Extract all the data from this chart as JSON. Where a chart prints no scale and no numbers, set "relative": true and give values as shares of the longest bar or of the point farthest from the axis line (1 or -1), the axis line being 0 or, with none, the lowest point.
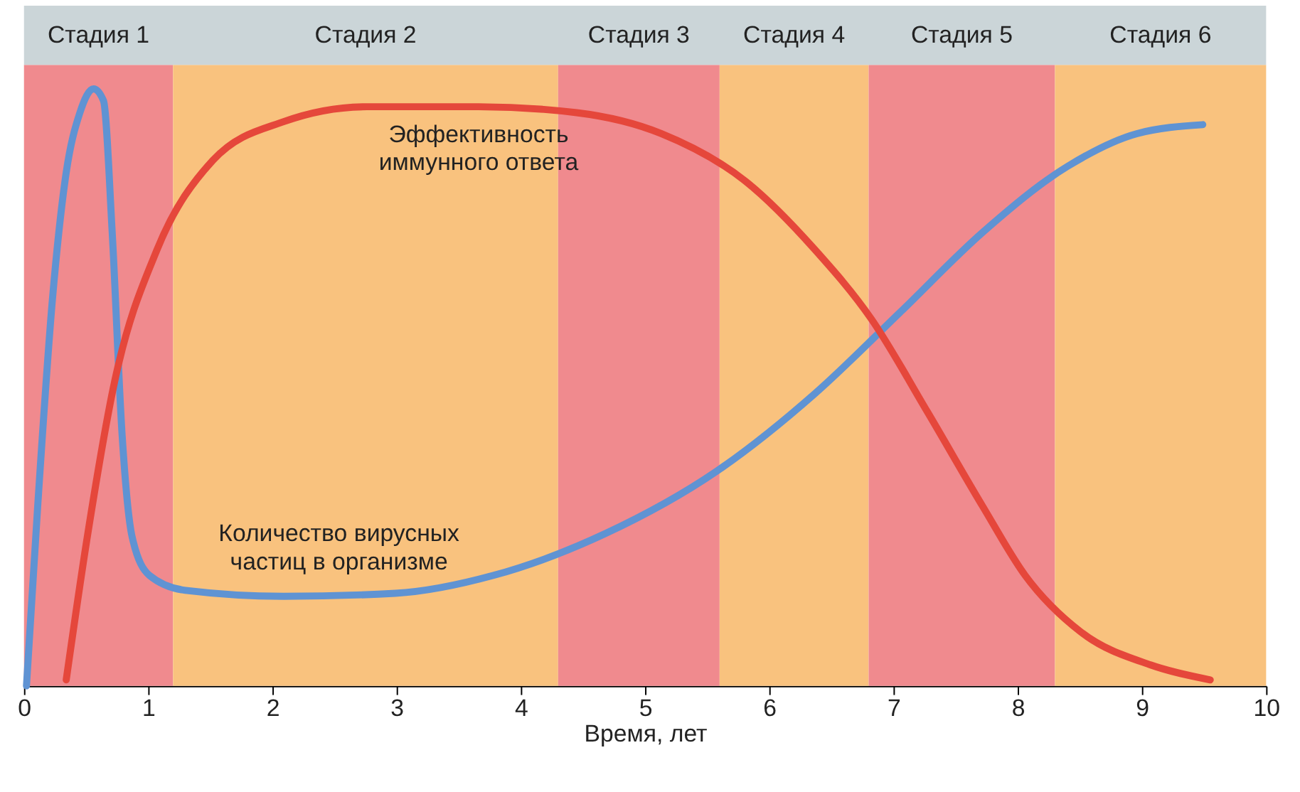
{
  "chart_data": {
    "type": "line",
    "relative": true,
    "xlabel": "Время, лет",
    "xlim": [
      0,
      10
    ],
    "xticks": [
      0,
      1,
      2,
      3,
      4,
      5,
      6,
      7,
      8,
      9,
      10
    ],
    "grid": false,
    "marker": "none",
    "line_style": "solid",
    "bands": [
      {
        "axis": "x",
        "from": 0,
        "to": 1.2,
        "label": "Стадия 1",
        "color": "#f08a8e"
      },
      {
        "axis": "x",
        "from": 1.2,
        "to": 4.3,
        "label": "Стадия 2",
        "color": "#f9c27e"
      },
      {
        "axis": "x",
        "from": 4.3,
        "to": 5.6,
        "label": "Стадия 3",
        "color": "#f08a8e"
      },
      {
        "axis": "x",
        "from": 5.6,
        "to": 6.8,
        "label": "Стадия 4",
        "color": "#f9c27e"
      },
      {
        "axis": "x",
        "from": 6.8,
        "to": 8.3,
        "label": "Стадия 5",
        "color": "#f08a8e"
      },
      {
        "axis": "x",
        "from": 8.3,
        "to": 10,
        "label": "Стадия 6",
        "color": "#f9c27e"
      }
    ],
    "series": [
      {
        "name": "Количество вирусных\nчастиц в организме",
        "color": "#5f93d3",
        "x": [
          0.02,
          0.11,
          0.23,
          0.34,
          0.45,
          0.56,
          0.64,
          0.71,
          0.79,
          0.87,
          1.01,
          1.3,
          2.09,
          2.99,
          3.78,
          4.68,
          5.58,
          6.37,
          7.05,
          7.72,
          8.4,
          8.96,
          9.49
        ],
        "values": [
          0,
          0.3,
          0.65,
          0.86,
          0.96,
          1.0,
          0.98,
          0.76,
          0.42,
          0.25,
          0.185,
          0.16,
          0.15,
          0.155,
          0.185,
          0.255,
          0.36,
          0.49,
          0.625,
          0.76,
          0.87,
          0.925,
          0.94
        ]
      },
      {
        "name": "Эффективность\nиммунного ответа",
        "color": "#e5473b",
        "x": [
          0.34,
          0.51,
          0.73,
          1.07,
          1.52,
          2.09,
          2.76,
          3.66,
          4.45,
          5.13,
          5.81,
          6.37,
          6.82,
          7.27,
          7.72,
          8.06,
          8.51,
          9.07,
          9.55
        ],
        "values": [
          0.01,
          0.25,
          0.51,
          0.73,
          0.88,
          0.945,
          0.97,
          0.97,
          0.96,
          0.925,
          0.845,
          0.73,
          0.615,
          0.46,
          0.3,
          0.185,
          0.09,
          0.035,
          0.01
        ]
      }
    ]
  }
}
